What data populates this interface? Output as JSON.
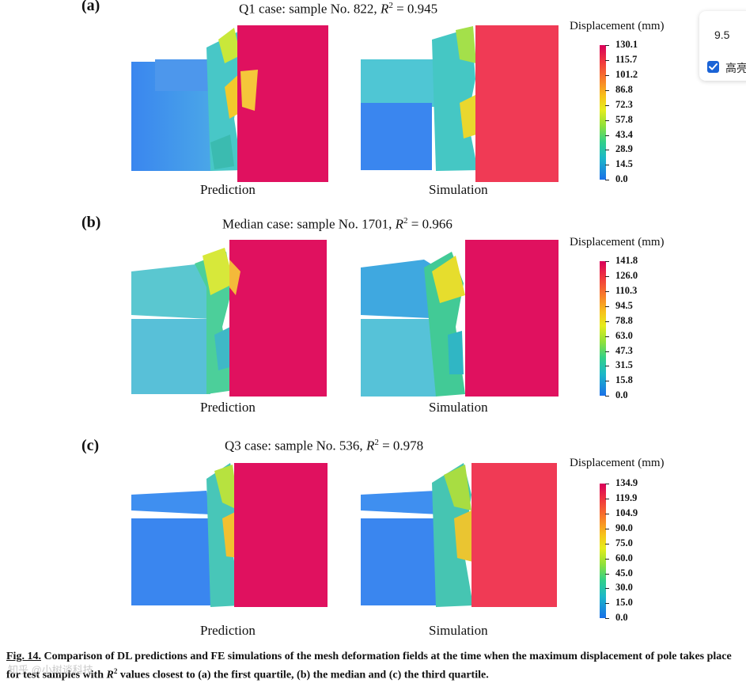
{
  "panels": [
    {
      "letter": "(a)",
      "title_prefix": "Q1 case: sample No. 822, ",
      "title_r": "R",
      "title_sup": "2",
      "title_value": " = 0.945",
      "left_label": "Prediction",
      "right_label": "Simulation",
      "colorbar_title": "Displacement (mm)",
      "ticks": [
        "130.1",
        "115.7",
        "101.2",
        "86.8",
        "72.3",
        "57.8",
        "43.4",
        "28.9",
        "14.5",
        "0.0"
      ]
    },
    {
      "letter": "(b)",
      "title_prefix": "Median case: sample No. 1701, ",
      "title_r": "R",
      "title_sup": "2",
      "title_value": " = 0.966",
      "left_label": "Prediction",
      "right_label": "Simulation",
      "colorbar_title": "Displacement (mm)",
      "ticks": [
        "141.8",
        "126.0",
        "110.3",
        "94.5",
        "78.8",
        "63.0",
        "47.3",
        "31.5",
        "15.8",
        "0.0"
      ]
    },
    {
      "letter": "(c)",
      "title_prefix": "Q3 case: sample No. 536, ",
      "title_r": "R",
      "title_sup": "2",
      "title_value": " = 0.978",
      "left_label": "Prediction",
      "right_label": "Simulation",
      "colorbar_title": "Displacement (mm)",
      "ticks": [
        "134.9",
        "119.9",
        "104.9",
        "90.0",
        "75.0",
        "60.0",
        "45.0",
        "30.0",
        "15.0",
        "0.0"
      ]
    }
  ],
  "popup": {
    "value": "9.5",
    "checkbox_label": "高亮",
    "checked": true
  },
  "caption": {
    "fig_label": "Fig. 14.",
    "text_1": " Comparison of DL predictions and FE simulations of the mesh deformation fields at the time when the maximum displacement of pole takes place for test samples with ",
    "r": "R",
    "sup": "2",
    "text_2": " values closest to (a) the first quartile, (b) the median and (c) the third quartile."
  },
  "watermark": "知乎 @小树谈科技",
  "colors": {
    "pole": "#e0115f",
    "pole_sim": "#f03a55",
    "vehicle_blue": "#3f8ff0",
    "vehicle_cyan": "#46c9d6"
  }
}
